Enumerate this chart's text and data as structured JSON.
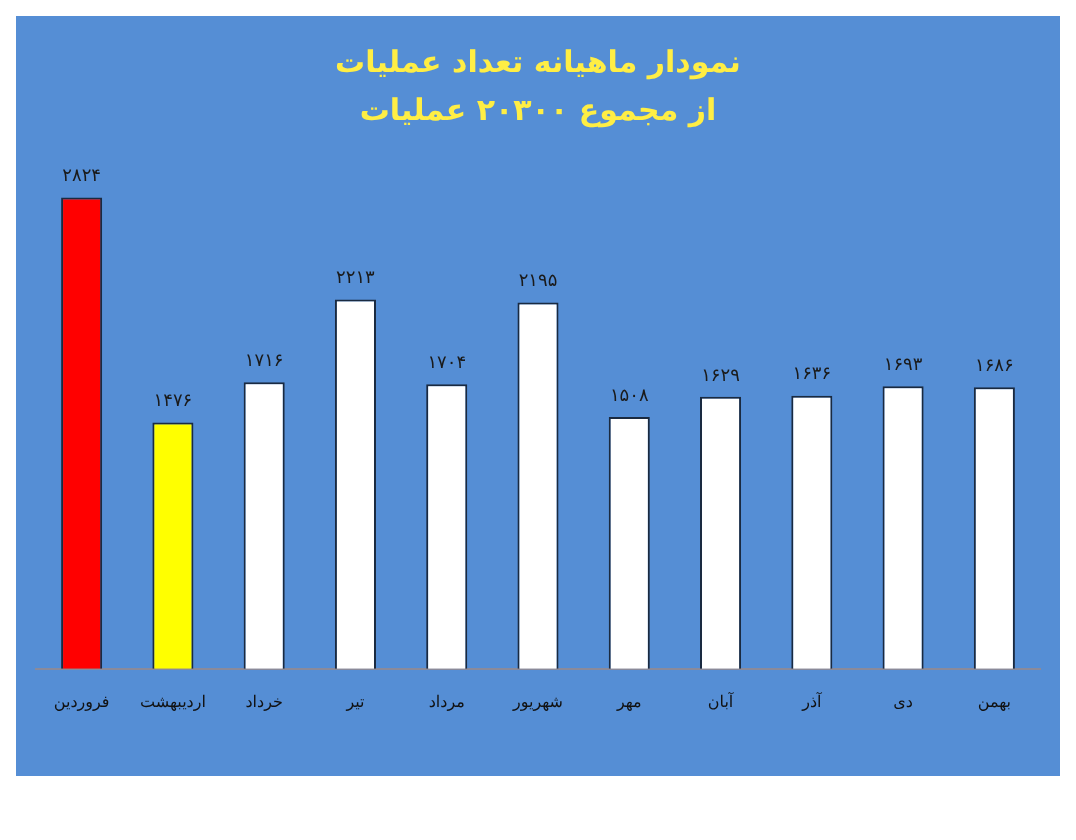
{
  "chart_data": {
    "type": "bar",
    "title": "نمودار ماهیانه تعداد عملیات",
    "subtitle": "از مجموع ۲۰۳۰۰ عملیات",
    "categories": [
      "فروردین",
      "اردیبهشت",
      "خرداد",
      "تیر",
      "مرداد",
      "شهریور",
      "مهر",
      "آبان",
      "آذر",
      "دی",
      "بهمن"
    ],
    "values": [
      2824,
      1476,
      1716,
      2213,
      1704,
      2195,
      1508,
      1629,
      1636,
      1693,
      1686
    ],
    "colors": [
      "#ff0000",
      "#ffff00",
      "#ffffff",
      "#ffffff",
      "#ffffff",
      "#ffffff",
      "#ffffff",
      "#ffffff",
      "#ffffff",
      "#ffffff",
      "#ffffff"
    ],
    "value_labels": [
      "۲۸۲۴",
      "۱۴۷۶",
      "۱۷۱۶",
      "۲۲۱۳",
      "۱۷۰۴",
      "۲۱۹۵",
      "۱۵۰۸",
      "۱۶۲۹",
      "۱۶۳۶",
      "۱۶۹۳",
      "۱۶۸۶"
    ],
    "grid": false,
    "legend": false
  }
}
